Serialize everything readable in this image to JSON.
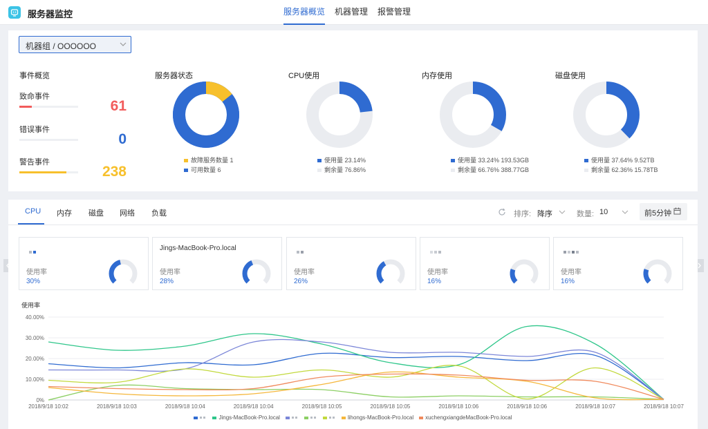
{
  "header": {
    "app_title": "服务器监控",
    "nav": [
      "服务器概览",
      "机器管理",
      "报警管理"
    ]
  },
  "overview": {
    "group_select": "机器组 / OOOOOO",
    "events_title": "事件概览",
    "events": [
      {
        "label": "致命事件",
        "value": "61",
        "color": "#f25c5c",
        "fill": 0.21
      },
      {
        "label": "错误事件",
        "value": "0",
        "color": "#2f6bd1",
        "fill": 0
      },
      {
        "label": "警告事件",
        "value": "238",
        "color": "#f7c02c",
        "fill": 0.8
      }
    ],
    "stats": [
      {
        "title": "服务器状态",
        "percent": 14.3,
        "color": "#2f6bd1",
        "first_color": "#f7c02c",
        "legend": [
          {
            "text": "故障服务数量  1",
            "color": "#f7c02c"
          },
          {
            "text": "可用数量  6",
            "color": "#2f6bd1"
          }
        ]
      },
      {
        "title": "CPU使用",
        "percent": 23.14,
        "color": "#2f6bd1",
        "legend": [
          {
            "text": "使用量 23.14%",
            "color": "#2f6bd1"
          },
          {
            "text": "剩余量 76.86%",
            "color": "#eaecf0"
          }
        ]
      },
      {
        "title": "内存使用",
        "percent": 33.24,
        "color": "#2f6bd1",
        "legend": [
          {
            "text": "使用量 33.24% 193.53GB",
            "color": "#2f6bd1"
          },
          {
            "text": "剩余量 66.76% 388.77GB",
            "color": "#eaecf0"
          }
        ]
      },
      {
        "title": "磁盘使用",
        "percent": 37.64,
        "color": "#2f6bd1",
        "legend": [
          {
            "text": "使用量 37.64% 9.52TB",
            "color": "#2f6bd1"
          },
          {
            "text": "剩余量 62.36% 15.78TB",
            "color": "#eaecf0"
          }
        ]
      }
    ]
  },
  "detail": {
    "tabs": [
      "CPU",
      "内存",
      "磁盘",
      "网络",
      "负载"
    ],
    "sort_label": "排序:",
    "sort_value": "降序",
    "count_label": "数量:",
    "count_value": "10",
    "time_range": "前5分钟",
    "cards": [
      {
        "name": "",
        "label": "使用率",
        "value": "30%",
        "percent": 30
      },
      {
        "name": "Jings-MacBook-Pro.local",
        "label": "使用率",
        "value": "28%",
        "percent": 28
      },
      {
        "name": "",
        "label": "使用率",
        "value": "26%",
        "percent": 26
      },
      {
        "name": "",
        "label": "使用率",
        "value": "16%",
        "percent": 16
      },
      {
        "name": "",
        "label": "使用率",
        "value": "16%",
        "percent": 16
      }
    ]
  },
  "chart_data": {
    "type": "line",
    "title": "",
    "ylabel": "使用率",
    "xlabel": "",
    "ylim": [
      0,
      40
    ],
    "y_ticks": [
      "0%",
      "10.00%",
      "20.00%",
      "30.00%",
      "40.00%"
    ],
    "categories": [
      "2018/9/18 10:02",
      "2018/9/18 10:03",
      "2018/9/18 10:04",
      "2018/9/18 10:04",
      "2018/9/18 10:05",
      "2018/9/18 10:05",
      "2018/9/18 10:06",
      "2018/9/18 10:06",
      "2018/9/18 10:07",
      "2018/9/18 10:07"
    ],
    "series": [
      {
        "name": "",
        "color": "#2f6bd1",
        "values": [
          17.5,
          15.5,
          18,
          17,
          22.5,
          20.5,
          21,
          19,
          21.5,
          0.3
        ]
      },
      {
        "name": "Jings-MacBook-Pro.local",
        "color": "#2ec68a",
        "values": [
          28,
          24,
          26,
          32,
          27,
          18,
          17,
          35.5,
          27,
          0.3
        ]
      },
      {
        "name": "",
        "color": "#7b86d8",
        "values": [
          14.5,
          14.5,
          15,
          28,
          28,
          23,
          23,
          21,
          23,
          0.3
        ]
      },
      {
        "name": "",
        "color": "#8ccf64",
        "values": [
          0,
          7,
          5.5,
          5,
          5,
          1.5,
          2,
          1.5,
          1.5,
          0.3
        ]
      },
      {
        "name": "",
        "color": "#c2d93d",
        "values": [
          9.5,
          8.5,
          15,
          11,
          14.5,
          11,
          16.5,
          0.5,
          15.5,
          0.3
        ]
      },
      {
        "name": "lihongs-MacBook-Pro.local",
        "color": "#f5b73b",
        "values": [
          6,
          3,
          2,
          3,
          7.5,
          13.5,
          11,
          9,
          1,
          0.3
        ]
      },
      {
        "name": "xuchengxiangdeMacBook-Pro.local",
        "color": "#f08a5d",
        "values": [
          6.5,
          5.5,
          5,
          5.5,
          11,
          12.5,
          12,
          9.5,
          9,
          0.3
        ]
      }
    ]
  }
}
